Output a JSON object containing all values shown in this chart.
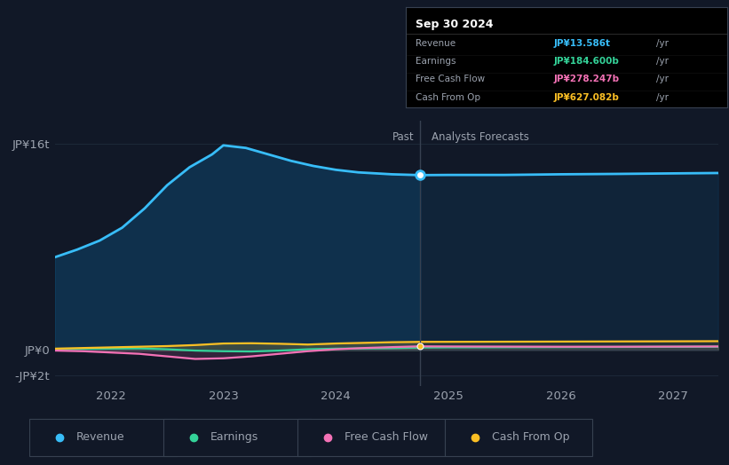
{
  "bg_color": "#111827",
  "plot_bg_color": "#111827",
  "colors": {
    "revenue": "#38bdf8",
    "earnings": "#34d399",
    "free_cash_flow": "#f472b6",
    "cash_from_op": "#fbbf24"
  },
  "legend_labels": [
    "Revenue",
    "Earnings",
    "Free Cash Flow",
    "Cash From Op"
  ],
  "tooltip": {
    "date": "Sep 30 2024",
    "revenue_label": "Revenue",
    "revenue_value": "JP¥13.586t",
    "revenue_unit": "/yr",
    "earnings_label": "Earnings",
    "earnings_value": "JP¥184.600b",
    "earnings_unit": "/yr",
    "fcf_label": "Free Cash Flow",
    "fcf_value": "JP¥278.247b",
    "fcf_unit": "/yr",
    "cfo_label": "Cash From Op",
    "cfo_value": "JP¥627.082b",
    "cfo_unit": "/yr"
  },
  "past_label": "Past",
  "forecast_label": "Analysts Forecasts",
  "divider_x": 2024.75,
  "yticks_labels": [
    "JP¥16t",
    "JP¥0",
    "-JP¥2t"
  ],
  "yticks_values": [
    16,
    0,
    -2
  ],
  "xticks_labels": [
    "2022",
    "2023",
    "2024",
    "2025",
    "2026",
    "2027"
  ],
  "xticks_values": [
    2022,
    2023,
    2024,
    2025,
    2026,
    2027
  ],
  "xlim": [
    2021.5,
    2027.4
  ],
  "ylim": [
    -2.8,
    17.8
  ],
  "revenue_past_x": [
    2021.5,
    2021.7,
    2021.9,
    2022.1,
    2022.3,
    2022.5,
    2022.7,
    2022.9,
    2023.0,
    2023.2,
    2023.4,
    2023.6,
    2023.8,
    2024.0,
    2024.2,
    2024.5,
    2024.75
  ],
  "revenue_past_y": [
    7.2,
    7.8,
    8.5,
    9.5,
    11.0,
    12.8,
    14.2,
    15.2,
    15.9,
    15.7,
    15.2,
    14.7,
    14.3,
    14.0,
    13.8,
    13.65,
    13.586
  ],
  "revenue_future_x": [
    2024.75,
    2025.0,
    2025.5,
    2026.0,
    2026.5,
    2027.0,
    2027.4
  ],
  "revenue_future_y": [
    13.586,
    13.6,
    13.6,
    13.65,
    13.68,
    13.72,
    13.75
  ],
  "earnings_past_x": [
    2021.5,
    2021.75,
    2022.0,
    2022.25,
    2022.5,
    2022.75,
    2023.0,
    2023.25,
    2023.5,
    2023.75,
    2024.0,
    2024.25,
    2024.5,
    2024.75
  ],
  "earnings_past_y": [
    0.05,
    0.08,
    0.1,
    0.12,
    0.05,
    -0.05,
    -0.1,
    -0.12,
    -0.05,
    0.05,
    0.1,
    0.12,
    0.14,
    0.1846
  ],
  "earnings_future_x": [
    2024.75,
    2025.0,
    2025.5,
    2026.0,
    2026.5,
    2027.0,
    2027.4
  ],
  "earnings_future_y": [
    0.1846,
    0.2,
    0.21,
    0.22,
    0.23,
    0.24,
    0.25
  ],
  "fcf_past_x": [
    2021.5,
    2021.75,
    2022.0,
    2022.25,
    2022.5,
    2022.75,
    2023.0,
    2023.25,
    2023.5,
    2023.75,
    2024.0,
    2024.25,
    2024.5,
    2024.75
  ],
  "fcf_past_y": [
    -0.05,
    -0.1,
    -0.2,
    -0.3,
    -0.5,
    -0.7,
    -0.65,
    -0.5,
    -0.3,
    -0.1,
    0.05,
    0.15,
    0.22,
    0.2782
  ],
  "fcf_future_x": [
    2024.75,
    2025.0,
    2025.5,
    2026.0,
    2026.5,
    2027.0,
    2027.4
  ],
  "fcf_future_y": [
    0.2782,
    0.27,
    0.26,
    0.25,
    0.25,
    0.26,
    0.27
  ],
  "cfo_past_x": [
    2021.5,
    2021.75,
    2022.0,
    2022.25,
    2022.5,
    2022.75,
    2023.0,
    2023.25,
    2023.5,
    2023.75,
    2024.0,
    2024.25,
    2024.5,
    2024.75
  ],
  "cfo_past_y": [
    0.1,
    0.15,
    0.2,
    0.25,
    0.3,
    0.38,
    0.5,
    0.52,
    0.48,
    0.42,
    0.5,
    0.55,
    0.6,
    0.6271
  ],
  "cfo_future_x": [
    2024.75,
    2025.0,
    2025.5,
    2026.0,
    2026.5,
    2027.0,
    2027.4
  ],
  "cfo_future_y": [
    0.6271,
    0.63,
    0.64,
    0.65,
    0.66,
    0.67,
    0.68
  ],
  "text_color": "#9ca3af",
  "grid_color": "#1f2d3d",
  "divider_color": "#374151",
  "tooltip_bg": "#000000",
  "tooltip_border": "#374151",
  "tooltip_text": "#9ca3af",
  "tooltip_title_text": "#ffffff"
}
